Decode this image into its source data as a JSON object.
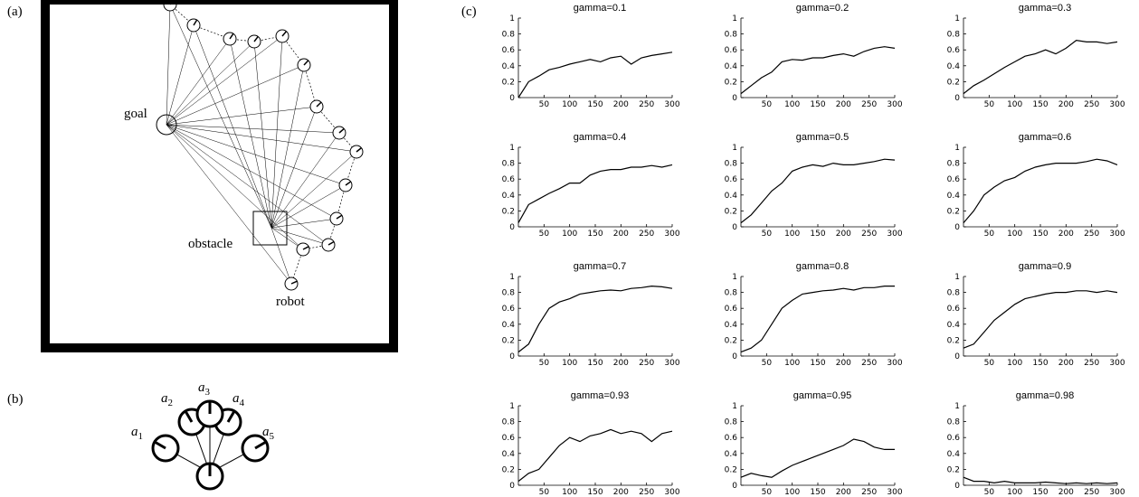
{
  "panel_labels": [
    "(a)",
    "(b)",
    "(c)"
  ],
  "diagram": {
    "goal": "goal",
    "obstacle": "obstacle",
    "robot": "robot",
    "actions": [
      {
        "symbol": "a",
        "subscript": "1"
      },
      {
        "symbol": "a",
        "subscript": "2"
      },
      {
        "symbol": "a",
        "subscript": "3"
      },
      {
        "symbol": "a",
        "subscript": "4"
      },
      {
        "symbol": "a",
        "subscript": "5"
      }
    ]
  },
  "chart_data": [
    {
      "type": "line",
      "title": "gamma=0.1",
      "x": [
        0,
        20,
        40,
        60,
        80,
        100,
        120,
        140,
        160,
        180,
        200,
        220,
        240,
        260,
        280,
        300
      ],
      "values": [
        0,
        0.2,
        0.27,
        0.35,
        0.38,
        0.42,
        0.45,
        0.48,
        0.45,
        0.5,
        0.52,
        0.42,
        0.5,
        0.53,
        0.55,
        0.57
      ],
      "color": "#000000",
      "xlim": [
        0,
        300
      ],
      "ylim": [
        0,
        1
      ],
      "xticks": [
        50,
        100,
        150,
        200,
        250,
        300
      ],
      "yticks": [
        0,
        0.2,
        0.4,
        0.6,
        0.8,
        1
      ]
    },
    {
      "type": "line",
      "title": "gamma=0.2",
      "x": [
        0,
        20,
        40,
        60,
        80,
        100,
        120,
        140,
        160,
        180,
        200,
        220,
        240,
        260,
        280,
        300
      ],
      "values": [
        0.05,
        0.15,
        0.25,
        0.32,
        0.45,
        0.48,
        0.47,
        0.5,
        0.5,
        0.53,
        0.55,
        0.52,
        0.58,
        0.62,
        0.64,
        0.62
      ],
      "color": "#000000",
      "xlim": [
        0,
        300
      ],
      "ylim": [
        0,
        1
      ],
      "xticks": [
        50,
        100,
        150,
        200,
        250,
        300
      ],
      "yticks": [
        0,
        0.2,
        0.4,
        0.6,
        0.8,
        1
      ]
    },
    {
      "type": "line",
      "title": "gamma=0.3",
      "x": [
        0,
        20,
        40,
        60,
        80,
        100,
        120,
        140,
        160,
        180,
        200,
        220,
        240,
        260,
        280,
        300
      ],
      "values": [
        0.05,
        0.15,
        0.22,
        0.3,
        0.38,
        0.45,
        0.52,
        0.55,
        0.6,
        0.55,
        0.62,
        0.72,
        0.7,
        0.7,
        0.68,
        0.7
      ],
      "color": "#000000",
      "xlim": [
        0,
        300
      ],
      "ylim": [
        0,
        1
      ],
      "xticks": [
        50,
        100,
        150,
        200,
        250,
        300
      ],
      "yticks": [
        0,
        0.2,
        0.4,
        0.6,
        0.8,
        1
      ]
    },
    {
      "type": "line",
      "title": "gamma=0.4",
      "x": [
        0,
        20,
        40,
        60,
        80,
        100,
        120,
        140,
        160,
        180,
        200,
        220,
        240,
        260,
        280,
        300
      ],
      "values": [
        0.05,
        0.28,
        0.35,
        0.42,
        0.48,
        0.55,
        0.55,
        0.65,
        0.7,
        0.72,
        0.72,
        0.75,
        0.75,
        0.77,
        0.75,
        0.78
      ],
      "color": "#000000",
      "xlim": [
        0,
        300
      ],
      "ylim": [
        0,
        1
      ],
      "xticks": [
        50,
        100,
        150,
        200,
        250,
        300
      ],
      "yticks": [
        0,
        0.2,
        0.4,
        0.6,
        0.8,
        1
      ]
    },
    {
      "type": "line",
      "title": "gamma=0.5",
      "x": [
        0,
        20,
        40,
        60,
        80,
        100,
        120,
        140,
        160,
        180,
        200,
        220,
        240,
        260,
        280,
        300
      ],
      "values": [
        0.05,
        0.15,
        0.3,
        0.45,
        0.55,
        0.7,
        0.75,
        0.78,
        0.76,
        0.8,
        0.78,
        0.78,
        0.8,
        0.82,
        0.85,
        0.84
      ],
      "color": "#000000",
      "xlim": [
        0,
        300
      ],
      "ylim": [
        0,
        1
      ],
      "xticks": [
        50,
        100,
        150,
        200,
        250,
        300
      ],
      "yticks": [
        0,
        0.2,
        0.4,
        0.6,
        0.8,
        1
      ]
    },
    {
      "type": "line",
      "title": "gamma=0.6",
      "x": [
        0,
        20,
        40,
        60,
        80,
        100,
        120,
        140,
        160,
        180,
        200,
        220,
        240,
        260,
        280,
        300
      ],
      "values": [
        0.05,
        0.2,
        0.4,
        0.5,
        0.58,
        0.62,
        0.7,
        0.75,
        0.78,
        0.8,
        0.8,
        0.8,
        0.82,
        0.85,
        0.83,
        0.78
      ],
      "color": "#000000",
      "xlim": [
        0,
        300
      ],
      "ylim": [
        0,
        1
      ],
      "xticks": [
        50,
        100,
        150,
        200,
        250,
        300
      ],
      "yticks": [
        0,
        0.2,
        0.4,
        0.6,
        0.8,
        1
      ]
    },
    {
      "type": "line",
      "title": "gamma=0.7",
      "x": [
        0,
        20,
        40,
        60,
        80,
        100,
        120,
        140,
        160,
        180,
        200,
        220,
        240,
        260,
        280,
        300
      ],
      "values": [
        0.05,
        0.15,
        0.4,
        0.6,
        0.68,
        0.72,
        0.78,
        0.8,
        0.82,
        0.83,
        0.82,
        0.85,
        0.86,
        0.88,
        0.87,
        0.85
      ],
      "color": "#000000",
      "xlim": [
        0,
        300
      ],
      "ylim": [
        0,
        1
      ],
      "xticks": [
        50,
        100,
        150,
        200,
        250,
        300
      ],
      "yticks": [
        0,
        0.2,
        0.4,
        0.6,
        0.8,
        1
      ]
    },
    {
      "type": "line",
      "title": "gamma=0.8",
      "x": [
        0,
        20,
        40,
        60,
        80,
        100,
        120,
        140,
        160,
        180,
        200,
        220,
        240,
        260,
        280,
        300
      ],
      "values": [
        0.05,
        0.1,
        0.2,
        0.4,
        0.6,
        0.7,
        0.78,
        0.8,
        0.82,
        0.83,
        0.85,
        0.83,
        0.86,
        0.86,
        0.88,
        0.88
      ],
      "color": "#000000",
      "xlim": [
        0,
        300
      ],
      "ylim": [
        0,
        1
      ],
      "xticks": [
        50,
        100,
        150,
        200,
        250,
        300
      ],
      "yticks": [
        0,
        0.2,
        0.4,
        0.6,
        0.8,
        1
      ]
    },
    {
      "type": "line",
      "title": "gamma=0.9",
      "x": [
        0,
        20,
        40,
        60,
        80,
        100,
        120,
        140,
        160,
        180,
        200,
        220,
        240,
        260,
        280,
        300
      ],
      "values": [
        0.1,
        0.15,
        0.3,
        0.45,
        0.55,
        0.65,
        0.72,
        0.75,
        0.78,
        0.8,
        0.8,
        0.82,
        0.82,
        0.8,
        0.82,
        0.8
      ],
      "color": "#000000",
      "xlim": [
        0,
        300
      ],
      "ylim": [
        0,
        1
      ],
      "xticks": [
        50,
        100,
        150,
        200,
        250,
        300
      ],
      "yticks": [
        0,
        0.2,
        0.4,
        0.6,
        0.8,
        1
      ]
    },
    {
      "type": "line",
      "title": "gamma=0.93",
      "x": [
        0,
        20,
        40,
        60,
        80,
        100,
        120,
        140,
        160,
        180,
        200,
        220,
        240,
        260,
        280,
        300
      ],
      "values": [
        0.05,
        0.15,
        0.2,
        0.35,
        0.5,
        0.6,
        0.55,
        0.62,
        0.65,
        0.7,
        0.65,
        0.68,
        0.65,
        0.55,
        0.65,
        0.68
      ],
      "color": "#000000",
      "xlim": [
        0,
        300
      ],
      "ylim": [
        0,
        1
      ],
      "xticks": [
        50,
        100,
        150,
        200,
        250,
        300
      ],
      "yticks": [
        0,
        0.2,
        0.4,
        0.6,
        0.8,
        1
      ]
    },
    {
      "type": "line",
      "title": "gamma=0.95",
      "x": [
        0,
        20,
        40,
        60,
        80,
        100,
        120,
        140,
        160,
        180,
        200,
        220,
        240,
        260,
        280,
        300
      ],
      "values": [
        0.1,
        0.15,
        0.12,
        0.1,
        0.18,
        0.25,
        0.3,
        0.35,
        0.4,
        0.45,
        0.5,
        0.58,
        0.55,
        0.48,
        0.45,
        0.45
      ],
      "color": "#000000",
      "xlim": [
        0,
        300
      ],
      "ylim": [
        0,
        1
      ],
      "xticks": [
        50,
        100,
        150,
        200,
        250,
        300
      ],
      "yticks": [
        0,
        0.2,
        0.4,
        0.6,
        0.8,
        1
      ]
    },
    {
      "type": "line",
      "title": "gamma=0.98",
      "x": [
        0,
        20,
        40,
        60,
        80,
        100,
        120,
        140,
        160,
        180,
        200,
        220,
        240,
        260,
        280,
        300
      ],
      "values": [
        0.1,
        0.05,
        0.05,
        0.03,
        0.05,
        0.03,
        0.03,
        0.03,
        0.04,
        0.03,
        0.02,
        0.03,
        0.02,
        0.03,
        0.02,
        0.03
      ],
      "color": "#000000",
      "xlim": [
        0,
        300
      ],
      "ylim": [
        0,
        1
      ],
      "xticks": [
        50,
        100,
        150,
        200,
        250,
        300
      ],
      "yticks": [
        0,
        0.2,
        0.4,
        0.6,
        0.8,
        1
      ]
    }
  ]
}
